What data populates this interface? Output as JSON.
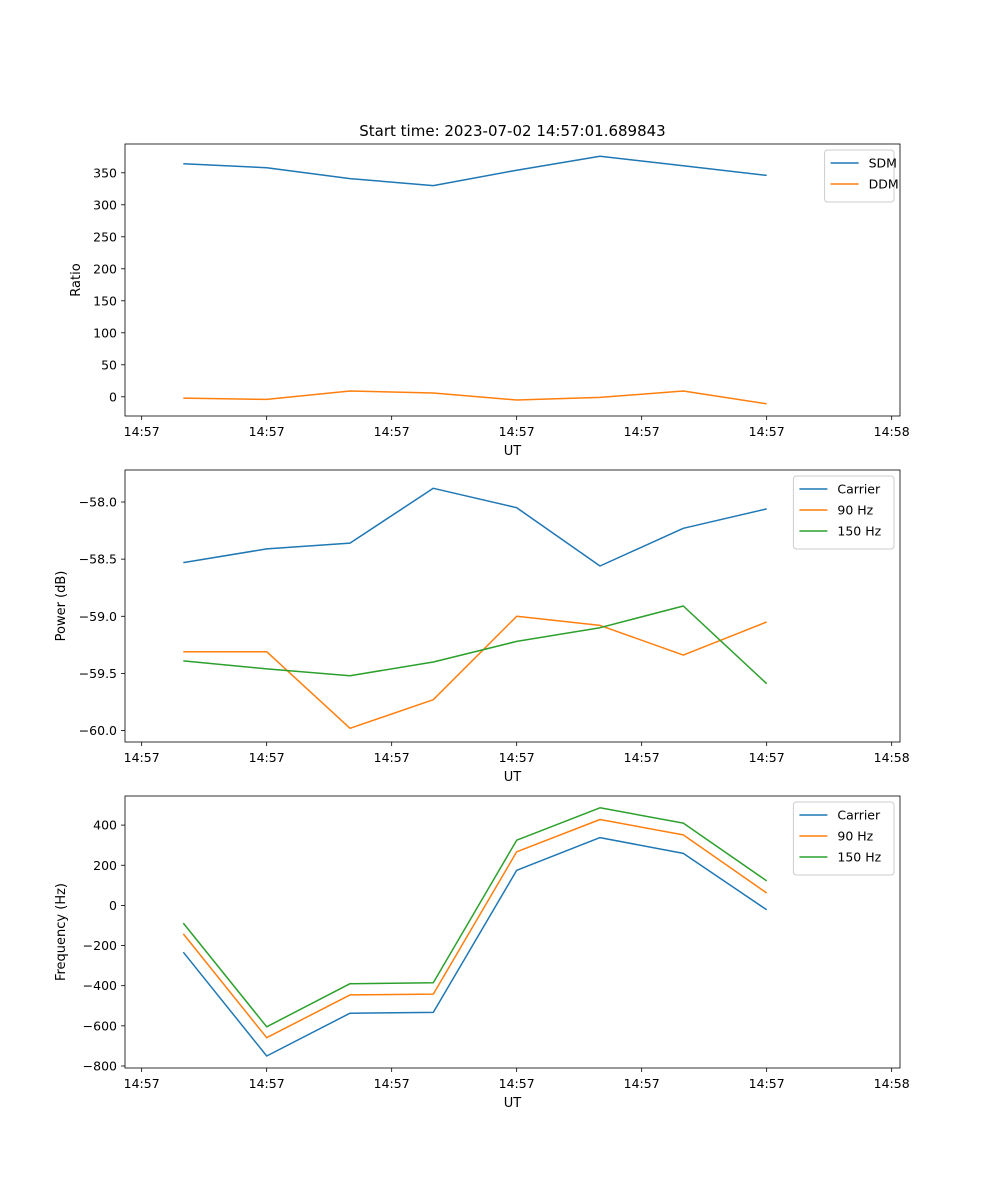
{
  "figure_title": "Start time: 2023-07-02 14:57:01.689843",
  "colors": {
    "c0": "#1f77b4",
    "c1": "#ff7f0e",
    "c2": "#2ca02c"
  },
  "chart_data": [
    {
      "type": "line",
      "title": "Start time: 2023-07-02 14:57:01.689843",
      "xlabel": "UT",
      "ylabel": "Ratio",
      "xlim": [
        -0.7,
        8.6
      ],
      "ylim": [
        -30,
        395
      ],
      "x": [
        0,
        1,
        2,
        3,
        4,
        5,
        6,
        7
      ],
      "xticks": [
        -0.5,
        1,
        2.5,
        4,
        5.5,
        7,
        8.5
      ],
      "xtick_labels": [
        "14:57",
        "14:57",
        "14:57",
        "14:57",
        "14:57",
        "14:57",
        "14:58"
      ],
      "yticks": [
        0,
        50,
        100,
        150,
        200,
        250,
        300,
        350
      ],
      "ytick_labels": [
        "0",
        "50",
        "100",
        "150",
        "200",
        "250",
        "300",
        "350"
      ],
      "legend_position": "top-right",
      "series": [
        {
          "name": "SDM",
          "color": "#1f77b4",
          "values": [
            364,
            358,
            341,
            330,
            354,
            376,
            361,
            346
          ]
        },
        {
          "name": "DDM",
          "color": "#ff7f0e",
          "values": [
            -2,
            -4,
            9,
            6,
            -5,
            -1,
            9,
            -11
          ]
        }
      ]
    },
    {
      "type": "line",
      "title": "",
      "xlabel": "UT",
      "ylabel": "Power (dB)",
      "xlim": [
        -0.7,
        8.6
      ],
      "ylim": [
        -60.1,
        -57.72
      ],
      "x": [
        0,
        1,
        2,
        3,
        4,
        5,
        6,
        7
      ],
      "xticks": [
        -0.5,
        1,
        2.5,
        4,
        5.5,
        7,
        8.5
      ],
      "xtick_labels": [
        "14:57",
        "14:57",
        "14:57",
        "14:57",
        "14:57",
        "14:57",
        "14:58"
      ],
      "yticks": [
        -60.0,
        -59.5,
        -59.0,
        -58.5,
        -58.0
      ],
      "ytick_labels": [
        "−60.0",
        "−59.5",
        "−59.0",
        "−58.5",
        "−58.0"
      ],
      "legend_position": "top-right",
      "series": [
        {
          "name": "Carrier",
          "color": "#1f77b4",
          "values": [
            -58.53,
            -58.41,
            -58.36,
            -57.88,
            -58.05,
            -58.56,
            -58.23,
            -58.06
          ]
        },
        {
          "name": "90 Hz",
          "color": "#ff7f0e",
          "values": [
            -59.31,
            -59.31,
            -59.98,
            -59.73,
            -59.0,
            -59.08,
            -59.34,
            -59.05
          ]
        },
        {
          "name": "150 Hz",
          "color": "#2ca02c",
          "values": [
            -59.39,
            -59.46,
            -59.52,
            -59.4,
            -59.22,
            -59.1,
            -58.91,
            -59.59
          ]
        }
      ]
    },
    {
      "type": "line",
      "title": "",
      "xlabel": "UT",
      "ylabel": "Frequency (Hz)",
      "xlim": [
        -0.7,
        8.6
      ],
      "ylim": [
        -810,
        545
      ],
      "x": [
        0,
        1,
        2,
        3,
        4,
        5,
        6,
        7
      ],
      "xticks": [
        -0.5,
        1,
        2.5,
        4,
        5.5,
        7,
        8.5
      ],
      "xtick_labels": [
        "14:57",
        "14:57",
        "14:57",
        "14:57",
        "14:57",
        "14:57",
        "14:58"
      ],
      "yticks": [
        -800,
        -600,
        -400,
        -200,
        0,
        200,
        400
      ],
      "ytick_labels": [
        "−800",
        "−600",
        "−400",
        "−200",
        "0",
        "200",
        "400"
      ],
      "legend_position": "top-right",
      "series": [
        {
          "name": "Carrier",
          "color": "#1f77b4",
          "values": [
            -233,
            -750,
            -537,
            -533,
            175,
            338,
            259,
            -22
          ]
        },
        {
          "name": "90 Hz",
          "color": "#ff7f0e",
          "values": [
            -142,
            -659,
            -446,
            -442,
            267,
            428,
            351,
            62
          ]
        },
        {
          "name": "150 Hz",
          "color": "#2ca02c",
          "values": [
            -88,
            -605,
            -390,
            -385,
            325,
            486,
            410,
            122
          ]
        }
      ]
    }
  ]
}
